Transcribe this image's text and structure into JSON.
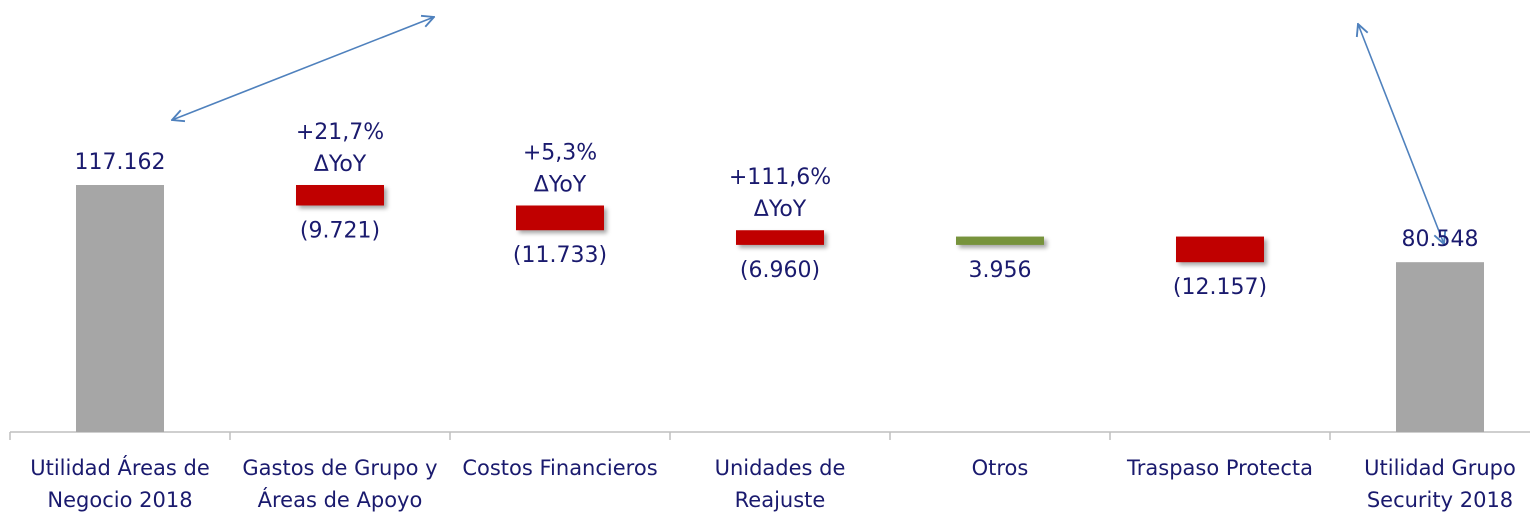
{
  "chart_data": {
    "type": "waterfall",
    "categories": [
      "Utilidad Áreas de Negocio 2018",
      "Gastos de Grupo y Áreas de Apoyo",
      "Costos Financieros",
      "Unidades de Reajuste",
      "Otros",
      "Traspaso Protecta",
      "Utilidad Grupo Security 2018"
    ],
    "values": [
      117162,
      -9721,
      -11733,
      -6960,
      3956,
      -12157,
      80548
    ],
    "value_labels": [
      "117.162",
      "(9.721)",
      "(11.733)",
      "(6.960)",
      "3.956",
      "(12.157)",
      "80.548"
    ],
    "is_total": [
      true,
      false,
      false,
      false,
      false,
      false,
      true
    ],
    "annotations": [
      null,
      [
        "+21,7%",
        "ΔYoY"
      ],
      [
        "+5,3%",
        "ΔYoY"
      ],
      [
        "+111,6%",
        "ΔYoY"
      ],
      null,
      null,
      null
    ],
    "colors": {
      "total": "#a6a6a6",
      "decrease": "#c00000",
      "increase": "#77933c"
    }
  }
}
